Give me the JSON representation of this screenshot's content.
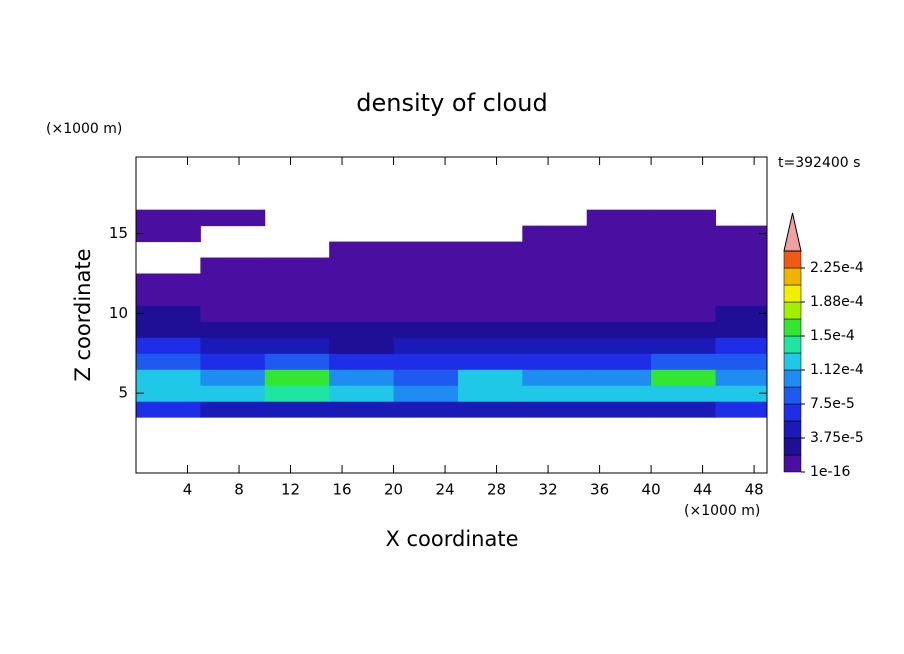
{
  "chart_data": {
    "type": "contourf",
    "title": "density of cloud",
    "x_label": "X coordinate",
    "y_label": "Z coordinate",
    "x_unit": "(×1000 m)",
    "y_unit": "(×1000 m)",
    "annotation": "t=392400 s",
    "xlim": [
      0,
      49
    ],
    "ylim": [
      0,
      19.8
    ],
    "xticks": [
      4,
      8,
      12,
      16,
      20,
      24,
      28,
      32,
      36,
      40,
      44,
      48
    ],
    "yticks": [
      5,
      10,
      15
    ],
    "x_edges": [
      0,
      5,
      10,
      15,
      20,
      25,
      30,
      35,
      40,
      45,
      49
    ],
    "z_edges": [
      3.5,
      4.5,
      5.5,
      6.5,
      7.5,
      8.5,
      9.5,
      10.5,
      11.5,
      12.5,
      13.5,
      14.5,
      15.5,
      16.5
    ],
    "field": [
      [
        6e-05,
        5e-05,
        5e-05,
        5e-05,
        5e-05,
        5e-05,
        5e-05,
        5e-05,
        5e-05,
        6e-05
      ],
      [
        0.00012,
        0.00012,
        0.00014,
        0.00012,
        0.0001,
        0.00013,
        0.00013,
        0.00013,
        0.00013,
        0.00012
      ],
      [
        0.00012,
        0.00011,
        0.00016,
        0.0001,
        9e-05,
        0.00012,
        0.0001,
        0.00011,
        0.00015,
        0.00011
      ],
      [
        8e-05,
        7e-05,
        8e-05,
        6e-05,
        6e-05,
        6e-05,
        7e-05,
        7e-05,
        8e-05,
        8e-05
      ],
      [
        6e-05,
        4e-05,
        4e-05,
        3e-05,
        4e-05,
        4e-05,
        4e-05,
        4e-05,
        4e-05,
        6e-05
      ],
      [
        3e-05,
        2e-05,
        2e-05,
        2e-05,
        2e-05,
        2e-05,
        2e-05,
        2e-05,
        2e-05,
        3e-05
      ],
      [
        2e-05,
        5e-06,
        5e-06,
        5e-06,
        5e-06,
        5e-06,
        5e-06,
        5e-06,
        5e-06,
        2e-05
      ],
      [
        5e-06,
        5e-06,
        5e-06,
        5e-06,
        5e-06,
        5e-06,
        5e-06,
        5e-06,
        5e-06,
        5e-06
      ],
      [
        5e-06,
        5e-06,
        5e-06,
        5e-06,
        5e-06,
        5e-06,
        5e-06,
        5e-06,
        5e-06,
        5e-06
      ],
      [
        null,
        5e-06,
        5e-06,
        5e-06,
        5e-06,
        5e-06,
        5e-06,
        5e-06,
        5e-06,
        5e-06
      ],
      [
        null,
        null,
        null,
        5e-06,
        5e-06,
        5e-06,
        5e-06,
        5e-06,
        5e-06,
        5e-06
      ],
      [
        5e-06,
        null,
        null,
        null,
        null,
        null,
        5e-06,
        5e-06,
        5e-06,
        5e-06
      ],
      [
        5e-06,
        5e-06,
        null,
        null,
        null,
        null,
        null,
        5e-06,
        5e-06,
        null
      ]
    ],
    "levels": [
      1e-16,
      1.875e-05,
      3.75e-05,
      5.625e-05,
      7.5e-05,
      9.375e-05,
      0.0001125,
      0.00013125,
      0.00015,
      0.00016875,
      0.0001875,
      0.00020625,
      0.000225,
      0.00024375
    ],
    "colors": [
      "#4a0fa0",
      "#1e0f96",
      "#1a1ab8",
      "#1e2ee6",
      "#1e5af0",
      "#1e8cf0",
      "#1ec8e6",
      "#1ee6a0",
      "#32e632",
      "#a0f000",
      "#f0f000",
      "#f0b400",
      "#f05a14"
    ],
    "extend_color": "#f0a0a0",
    "colorbar_ticks": [
      1e-16,
      {
        "value": 3.75e-05,
        "label": "3.75e-5"
      },
      {
        "value": 7.5e-05,
        "label": "7.5e-5"
      },
      {
        "value": 0.0001125,
        "label": "1.12e-4"
      },
      {
        "value": 0.00015,
        "label": "1.5e-4"
      },
      {
        "value": 0.0001875,
        "label": "1.88e-4"
      },
      {
        "value": 0.000225,
        "label": "2.25e-4"
      }
    ]
  }
}
